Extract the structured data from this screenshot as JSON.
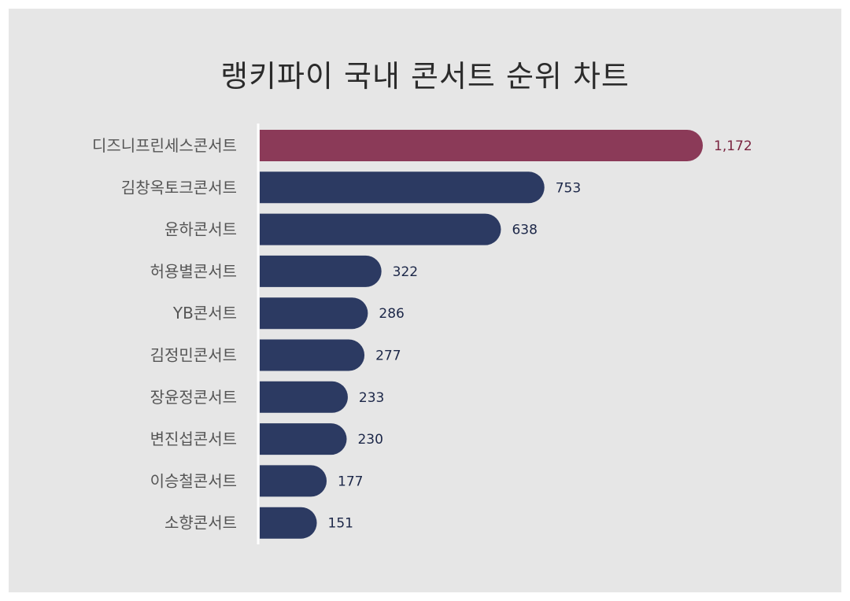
{
  "chart_data": {
    "type": "bar",
    "orientation": "horizontal",
    "title": "랭키파이 국내 콘서트 순위 차트",
    "categories": [
      "디즈니프린세스콘서트",
      "김창옥토크콘서트",
      "윤하콘서트",
      "허용별콘서트",
      "YB콘서트",
      "김정민콘서트",
      "장윤정콘서트",
      "변진섭콘서트",
      "이승철콘서트",
      "소향콘서트"
    ],
    "values": [
      1172,
      753,
      638,
      322,
      286,
      277,
      233,
      230,
      177,
      151
    ],
    "value_labels": [
      "1,172",
      "753",
      "638",
      "322",
      "286",
      "277",
      "233",
      "230",
      "177",
      "151"
    ],
    "xlim": [
      0,
      1172
    ],
    "grid": false,
    "legend": "none"
  },
  "colors": {
    "highlight_bar": "#8b3a58",
    "bar": "#2c3a62",
    "highlight_label": "#7a2440",
    "value_label": "#1c2748",
    "category_label": "#555555",
    "card_background": "#e6e6e6",
    "axis_line": "#ffffff"
  }
}
